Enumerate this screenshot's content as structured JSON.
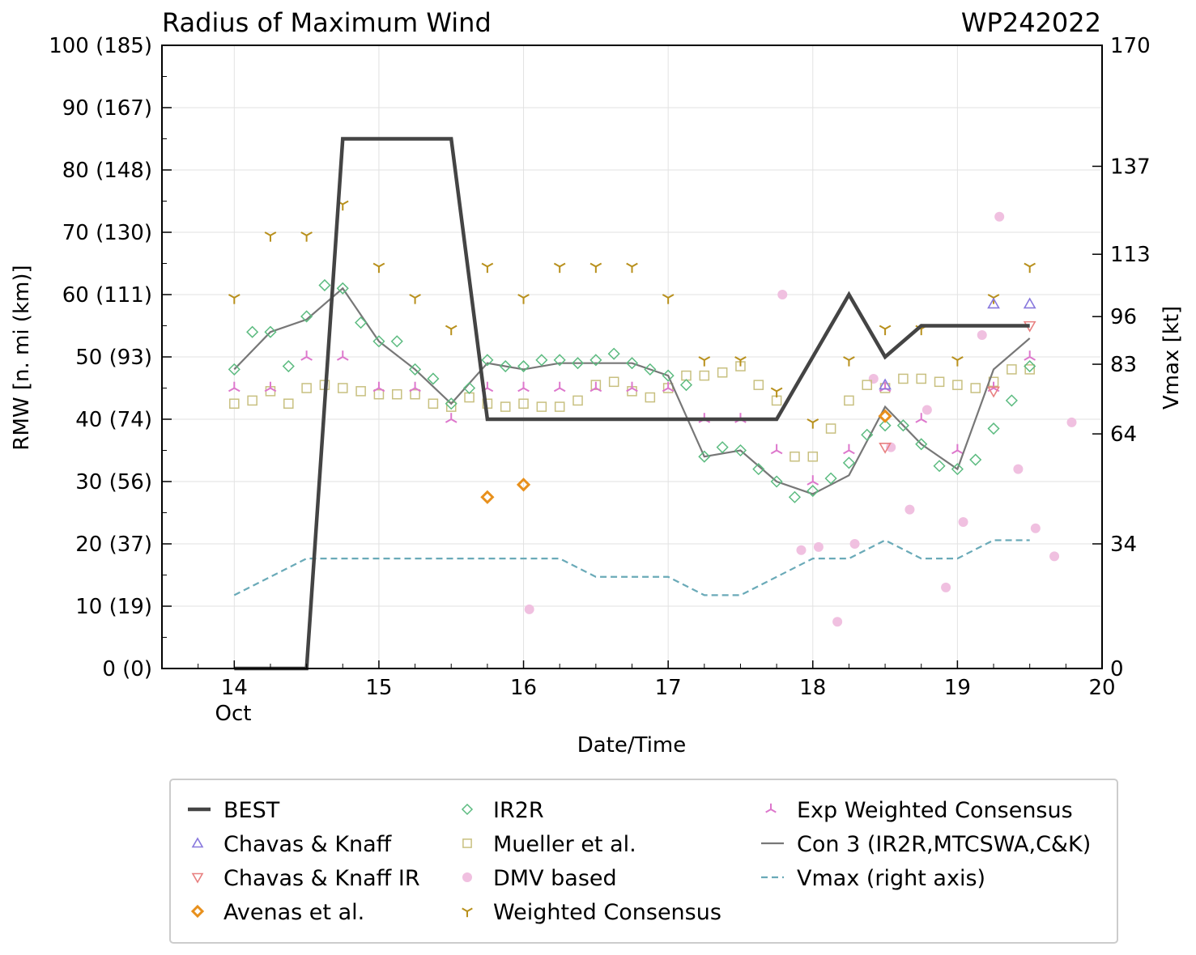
{
  "chart_data": {
    "type": "line",
    "title": "Radius of Maximum Wind",
    "storm_id": "WP242022",
    "xlabel": "Date/Time",
    "ylabel": "RMW [n. mi (km)]",
    "y2label": "Vmax [kt]",
    "xlim": [
      13.5,
      20.0
    ],
    "ylim": [
      0,
      100
    ],
    "y2lim": [
      0,
      170
    ],
    "x_ticks": [
      {
        "v": 14,
        "label": "14"
      },
      {
        "v": 15,
        "label": "15"
      },
      {
        "v": 16,
        "label": "16"
      },
      {
        "v": 17,
        "label": "17"
      },
      {
        "v": 18,
        "label": "18"
      },
      {
        "v": 19,
        "label": "19"
      },
      {
        "v": 20,
        "label": "20"
      }
    ],
    "x_month_label": "Oct",
    "y_ticks": [
      {
        "v": 0,
        "label": "0 (0)"
      },
      {
        "v": 10,
        "label": "10 (19)"
      },
      {
        "v": 20,
        "label": "20 (37)"
      },
      {
        "v": 30,
        "label": "30 (56)"
      },
      {
        "v": 40,
        "label": "40 (74)"
      },
      {
        "v": 50,
        "label": "50 (93)"
      },
      {
        "v": 60,
        "label": "60 (111)"
      },
      {
        "v": 70,
        "label": "70 (130)"
      },
      {
        "v": 80,
        "label": "80 (148)"
      },
      {
        "v": 90,
        "label": "90 (167)"
      },
      {
        "v": 100,
        "label": "100 (185)"
      }
    ],
    "y2_ticks": [
      {
        "v": 0,
        "label": "0"
      },
      {
        "v": 34,
        "label": "34"
      },
      {
        "v": 64,
        "label": "64"
      },
      {
        "v": 83,
        "label": "83"
      },
      {
        "v": 96,
        "label": "96"
      },
      {
        "v": 113,
        "label": "113"
      },
      {
        "v": 137,
        "label": "137"
      },
      {
        "v": 170,
        "label": "170"
      }
    ],
    "series": [
      {
        "name": "BEST",
        "kind": "line",
        "color": "#444444",
        "x": [
          14.0,
          14.5,
          14.75,
          15.5,
          15.75,
          17.75,
          18.25,
          18.5,
          18.75,
          19.5
        ],
        "y": [
          0,
          0,
          85,
          85,
          40,
          40,
          60,
          50,
          55,
          55
        ]
      },
      {
        "name": "Chavas & Knaff",
        "kind": "marker",
        "marker": "triangle-up",
        "color": "#8878dd",
        "x": [
          18.5,
          19.25,
          19.5
        ],
        "y": [
          45.5,
          58.5,
          58.5
        ]
      },
      {
        "name": "Chavas & Knaff IR",
        "kind": "marker",
        "marker": "triangle-down",
        "color": "#e88080",
        "x": [
          18.5,
          19.25,
          19.5
        ],
        "y": [
          35.5,
          44.5,
          55
        ]
      },
      {
        "name": "Avenas et al.",
        "kind": "marker",
        "marker": "diamond-bold",
        "color": "#e8901c",
        "x": [
          15.75,
          16.0,
          18.5
        ],
        "y": [
          27.5,
          29.5,
          40.5
        ]
      },
      {
        "name": "IR2R",
        "kind": "marker",
        "marker": "diamond",
        "color": "#5cbb80",
        "x": [
          14.0,
          14.125,
          14.25,
          14.375,
          14.5,
          14.625,
          14.75,
          14.875,
          15.0,
          15.125,
          15.25,
          15.375,
          15.5,
          15.625,
          15.75,
          15.875,
          16.0,
          16.125,
          16.25,
          16.375,
          16.5,
          16.625,
          16.75,
          16.875,
          17.0,
          17.125,
          17.25,
          17.375,
          17.5,
          17.625,
          17.75,
          17.875,
          18.0,
          18.125,
          18.25,
          18.375,
          18.5,
          18.625,
          18.75,
          18.875,
          19.0,
          19.125,
          19.25,
          19.375,
          19.5
        ],
        "y": [
          48,
          54,
          54,
          48.5,
          56.5,
          61.5,
          61,
          55.5,
          52.5,
          52.5,
          48,
          46.5,
          42.5,
          45,
          49.5,
          48.5,
          48.5,
          49.5,
          49.5,
          49,
          49.5,
          50.5,
          49,
          48,
          47,
          45.5,
          34,
          35.5,
          35,
          32,
          30,
          27.5,
          28.5,
          30.5,
          33,
          37.5,
          39,
          39,
          36,
          32.5,
          32,
          33.5,
          38.5,
          43,
          48.5
        ]
      },
      {
        "name": "Mueller et al.",
        "kind": "marker",
        "marker": "square",
        "color": "#c8c080",
        "x": [
          14.0,
          14.125,
          14.25,
          14.375,
          14.5,
          14.625,
          14.75,
          14.875,
          15.0,
          15.125,
          15.25,
          15.375,
          15.5,
          15.625,
          15.75,
          15.875,
          16.0,
          16.125,
          16.25,
          16.375,
          16.5,
          16.625,
          16.75,
          16.875,
          17.0,
          17.125,
          17.25,
          17.375,
          17.5,
          17.625,
          17.75,
          17.875,
          18.0,
          18.125,
          18.25,
          18.375,
          18.5,
          18.625,
          18.75,
          18.875,
          19.0,
          19.125,
          19.25,
          19.375,
          19.5
        ],
        "y": [
          42.5,
          43,
          44.5,
          42.5,
          45,
          45.5,
          45,
          44.5,
          44,
          44,
          44,
          42.5,
          42,
          43.5,
          42.5,
          42,
          42.5,
          42,
          42,
          43,
          45.5,
          46,
          44.5,
          43.5,
          45,
          47,
          47,
          47.5,
          48.5,
          45.5,
          43,
          34,
          34,
          38.5,
          43,
          45.5,
          45,
          46.5,
          46.5,
          46,
          45.5,
          45,
          46,
          48,
          48
        ]
      },
      {
        "name": "DMV based",
        "kind": "marker",
        "marker": "circle",
        "color": "#f0c0e0",
        "x": [
          16.04,
          17.79,
          17.92,
          18.04,
          18.17,
          18.29,
          18.42,
          18.54,
          18.67,
          18.79,
          18.92,
          19.04,
          19.17,
          19.29,
          19.42,
          19.54,
          19.67,
          19.79
        ],
        "y": [
          9.5,
          60,
          19,
          19.5,
          7.5,
          20,
          46.5,
          35.5,
          25.5,
          41.5,
          13,
          23.5,
          53.5,
          72.5,
          32,
          22.5,
          18,
          39.5
        ]
      },
      {
        "name": "Weighted Consensus",
        "kind": "marker",
        "marker": "tri-down",
        "color": "#b8901c",
        "x": [
          14.0,
          14.25,
          14.5,
          14.75,
          15.0,
          15.25,
          15.5,
          15.75,
          16.0,
          16.25,
          16.5,
          16.75,
          17.0,
          17.25,
          17.5,
          17.75,
          18.0,
          18.25,
          18.5,
          18.75,
          19.0,
          19.25,
          19.5
        ],
        "y": [
          59.5,
          69.5,
          69.5,
          74.5,
          64.5,
          59.5,
          54.5,
          64.5,
          59.5,
          64.5,
          64.5,
          64.5,
          59.5,
          49.5,
          49.5,
          44.5,
          39.5,
          49.5,
          54.5,
          54.5,
          49.5,
          59.5,
          64.5
        ]
      },
      {
        "name": "Exp Weighted Consensus",
        "kind": "marker",
        "marker": "tri-up",
        "color": "#dd77cc",
        "x": [
          14.0,
          14.25,
          14.5,
          14.75,
          15.0,
          15.25,
          15.5,
          15.75,
          16.0,
          16.25,
          16.5,
          16.75,
          17.0,
          17.25,
          17.5,
          17.75,
          18.0,
          18.25,
          18.5,
          18.75,
          19.0,
          19.25,
          19.5
        ],
        "y": [
          45,
          45,
          50,
          50,
          45,
          45,
          40,
          45,
          45,
          45,
          45,
          45,
          45,
          40,
          40,
          35,
          30,
          35,
          45,
          40,
          35,
          45,
          50
        ]
      },
      {
        "name": "Con 3 (IR2R,MTCSWA,C&K)",
        "kind": "line",
        "color": "#777777",
        "x": [
          14.0,
          14.25,
          14.5,
          14.75,
          15.0,
          15.25,
          15.5,
          15.75,
          16.0,
          16.25,
          16.5,
          16.75,
          17.0,
          17.25,
          17.5,
          17.75,
          18.0,
          18.25,
          18.5,
          18.75,
          19.0,
          19.25,
          19.5
        ],
        "y": [
          48,
          54,
          56,
          61,
          52.5,
          48,
          42.5,
          49,
          48,
          49,
          49,
          49,
          47,
          34,
          35,
          30,
          28,
          31,
          42,
          36,
          32,
          48,
          53
        ]
      },
      {
        "name": "Vmax (right axis)",
        "kind": "line",
        "dashed": true,
        "axis": "right",
        "color": "#6aaab8",
        "x": [
          14.0,
          14.5,
          16.25,
          16.5,
          17.0,
          17.25,
          17.5,
          18.0,
          18.25,
          18.5,
          18.75,
          19.0,
          19.25,
          19.5
        ],
        "y": [
          20,
          30,
          30,
          25,
          25,
          20,
          20,
          30,
          30,
          35,
          30,
          30,
          35,
          35
        ]
      }
    ],
    "legend": {
      "placement": "bottom",
      "columns": [
        [
          "BEST",
          "Chavas & Knaff",
          "Chavas & Knaff IR",
          "Avenas et al."
        ],
        [
          "IR2R",
          "Mueller et al.",
          "DMV based",
          "Weighted Consensus"
        ],
        [
          "Exp Weighted Consensus",
          "Con 3 (IR2R,MTCSWA,C&K)",
          "Vmax (right axis)"
        ]
      ]
    }
  }
}
